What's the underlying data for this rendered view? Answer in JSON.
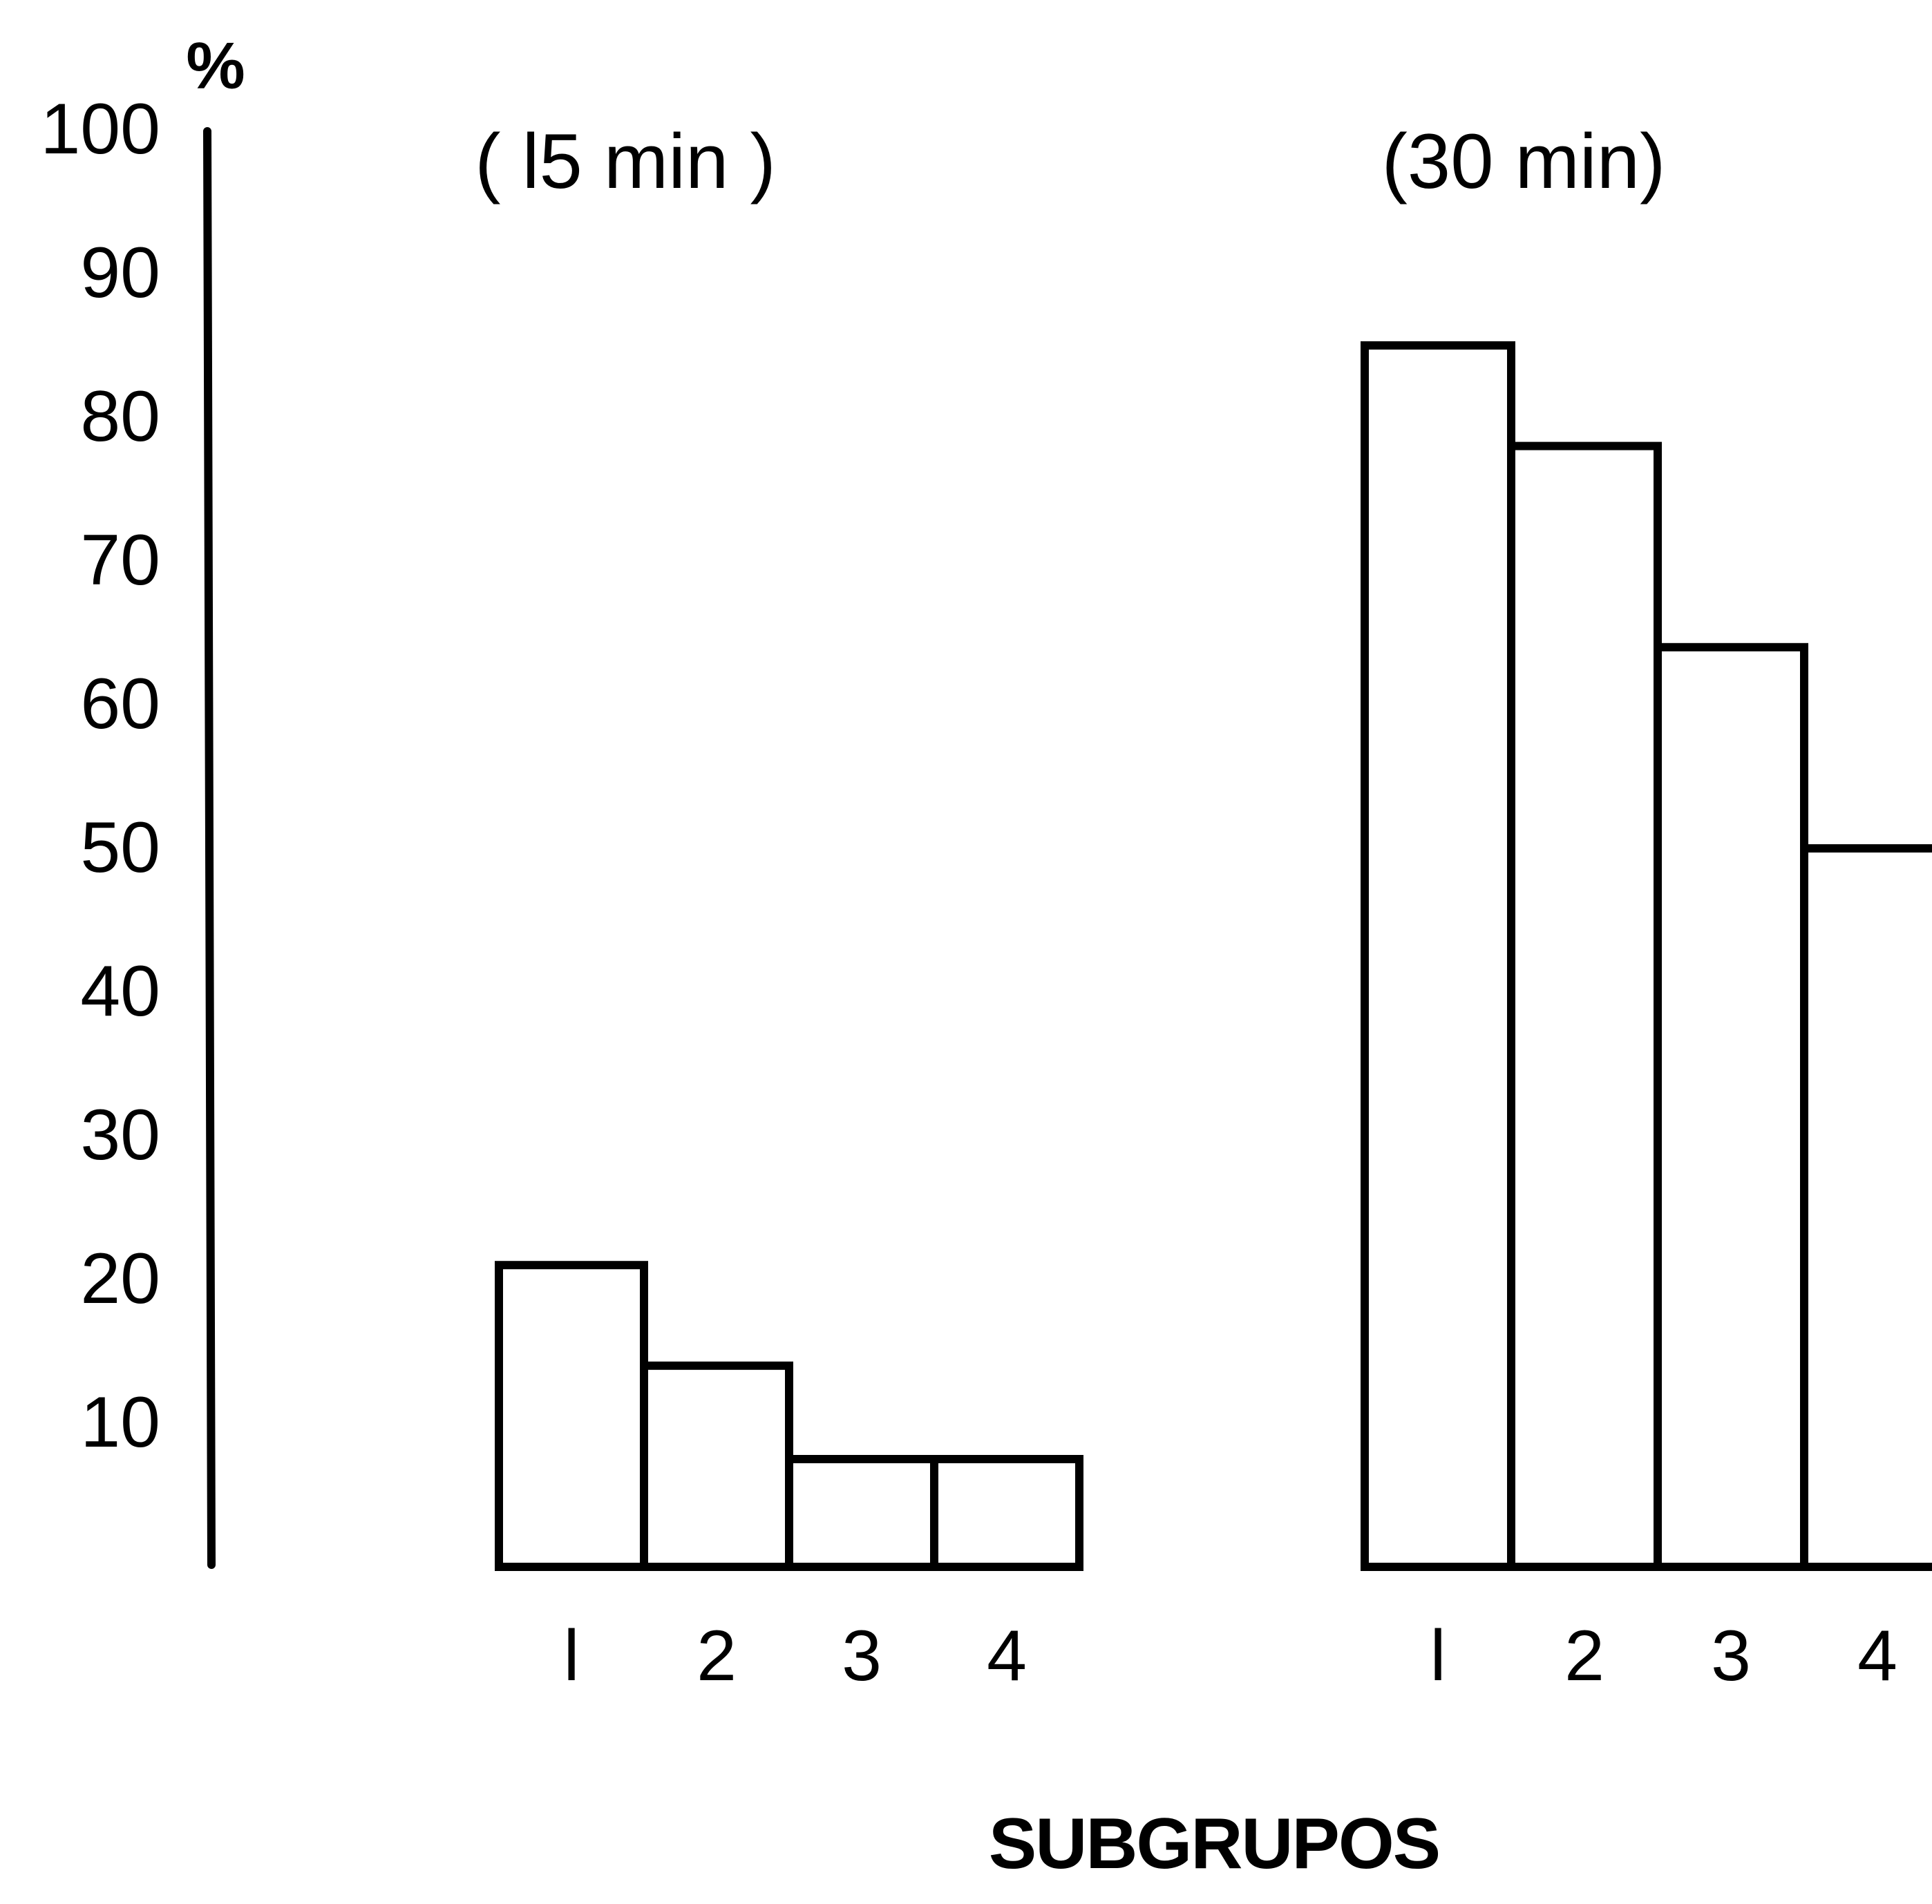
{
  "chart_data": {
    "type": "bar",
    "y_axis": {
      "unit_label": "%",
      "ylim": [
        0,
        100
      ],
      "ticks": [
        100,
        90,
        80,
        70,
        60,
        50,
        40,
        30,
        20,
        10
      ]
    },
    "xlabel": "SUBGRUPOS",
    "grid": false,
    "colors": {
      "bar_fill": "#ffffff",
      "bar_stroke": "#000000"
    },
    "panels": [
      {
        "title": "( l5 min )",
        "categories": [
          "l",
          "2",
          "3",
          "4"
        ],
        "values": [
          21,
          14,
          7.5,
          7.5
        ]
      },
      {
        "title": "(30 min)",
        "categories": [
          "l",
          "2",
          "3",
          "4"
        ],
        "values": [
          85,
          78,
          64,
          50
        ]
      }
    ]
  }
}
